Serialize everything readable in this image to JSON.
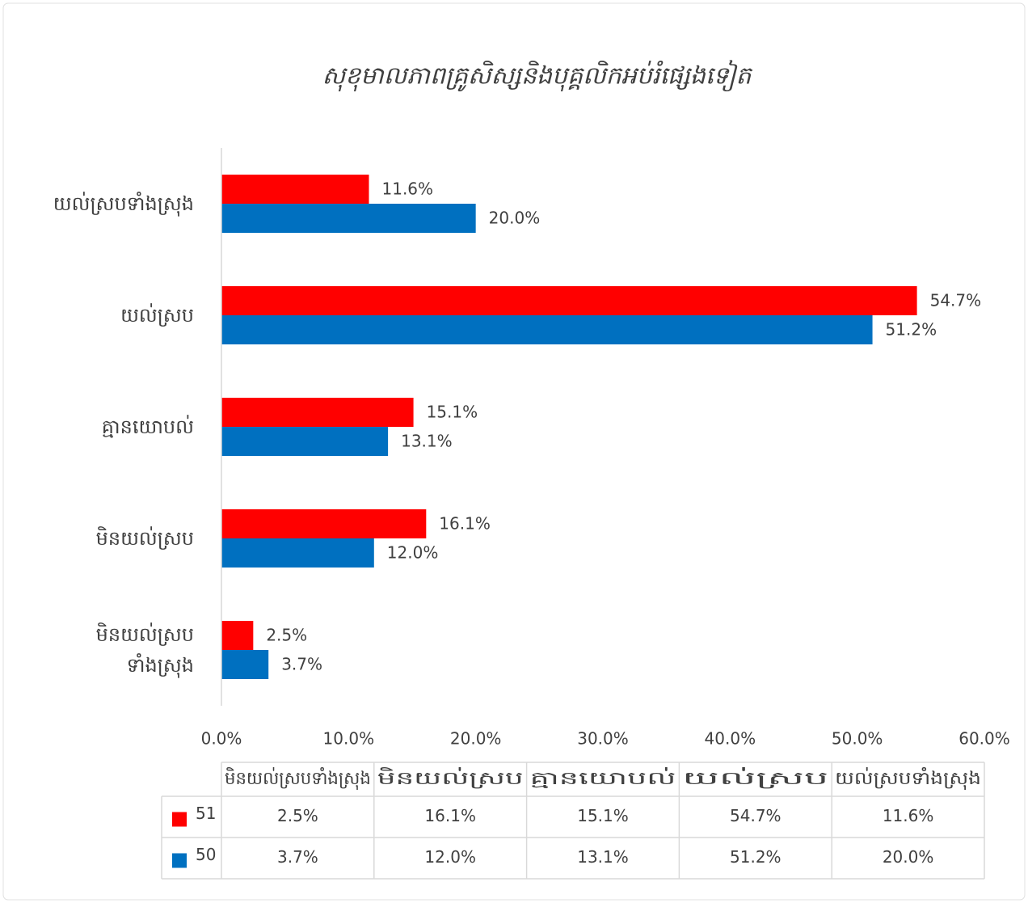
{
  "chart_data": {
    "type": "bar",
    "orientation": "horizontal",
    "title": "សុខុមាលភាពគ្រូសិស្សនិងបុគ្គលិកអប់រំផ្សេងទៀត",
    "categories": [
      "មិនយល់ស្របទាំងស្រុង",
      "មិនយល់ស្រប",
      "គ្មានយោបល់",
      "យល់ស្រប",
      "យល់ស្របទាំងស្រុង"
    ],
    "series": [
      {
        "name": "51",
        "color": "#ff0000",
        "values": [
          2.5,
          16.1,
          15.1,
          54.7,
          11.6
        ],
        "value_labels": [
          "2.5%",
          "16.1%",
          "15.1%",
          "54.7%",
          "11.6%"
        ]
      },
      {
        "name": "50",
        "color": "#0070c0",
        "values": [
          3.7,
          12.0,
          13.1,
          51.2,
          20.0
        ],
        "value_labels": [
          "3.7%",
          "12.0%",
          "13.1%",
          "51.2%",
          "20.0%"
        ]
      }
    ],
    "xlim": [
      0,
      60
    ],
    "xticks": [
      {
        "value": 0,
        "label": "0.0%"
      },
      {
        "value": 10,
        "label": "10.0%"
      },
      {
        "value": 20,
        "label": "20.0%"
      },
      {
        "value": 30,
        "label": "30.0%"
      },
      {
        "value": 40,
        "label": "40.0%"
      },
      {
        "value": 50,
        "label": "50.0%"
      },
      {
        "value": 60,
        "label": "60.0%"
      }
    ],
    "data_table": true
  }
}
